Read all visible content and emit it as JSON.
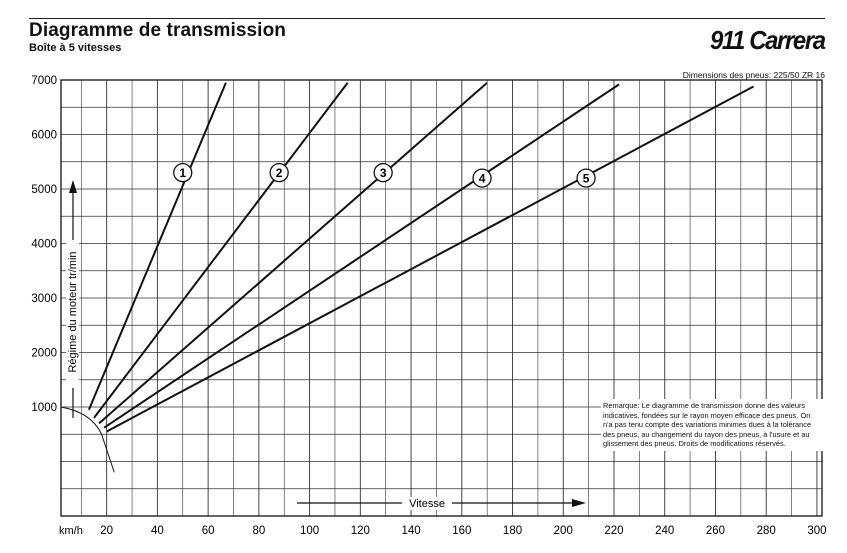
{
  "header": {
    "title": "Diagramme de transmission",
    "subtitle": "Boîte à 5 vitesses",
    "brand": "911 Carrera",
    "tire_spec": "Dimensions des pneus: 225/50 ZR 16"
  },
  "note": "Remarque: Le diagramme de transmission donne des valeurs indicatives, fondées sur le rayon moyen efficace des pneus. On n'a pas tenu compte des variations minimes dues à la tolérance des pneus, au changement du rayon des pneus, à l'usure et au glissement des pneus. Droits de modifications réservés.",
  "chart_data": {
    "type": "line",
    "title": "Diagramme de transmission",
    "xlabel": "Vitesse",
    "xunit": "km/h",
    "ylabel": "Régime du moteur tr/min",
    "xlim": [
      0,
      300
    ],
    "ylim": [
      0,
      7000
    ],
    "x_ticks": [
      20,
      40,
      60,
      80,
      100,
      120,
      140,
      160,
      180,
      200,
      220,
      240,
      260,
      280,
      300
    ],
    "y_ticks": [
      1000,
      2000,
      3000,
      4000,
      5000,
      6000,
      7000
    ],
    "grid": true,
    "series": [
      {
        "name": "1",
        "points": [
          [
            13,
            950
          ],
          [
            67,
            6950
          ]
        ]
      },
      {
        "name": "2",
        "points": [
          [
            15,
            800
          ],
          [
            115,
            6950
          ]
        ]
      },
      {
        "name": "3",
        "points": [
          [
            17,
            700
          ],
          [
            170,
            6950
          ]
        ]
      },
      {
        "name": "4",
        "points": [
          [
            19,
            620
          ],
          [
            222,
            6920
          ]
        ]
      },
      {
        "name": "5",
        "points": [
          [
            20,
            550
          ],
          [
            275,
            6880
          ]
        ]
      }
    ],
    "gear_labels": [
      {
        "text": "1",
        "x": 50,
        "y": 5300
      },
      {
        "text": "2",
        "x": 88,
        "y": 5300
      },
      {
        "text": "3",
        "x": 129,
        "y": 5300
      },
      {
        "text": "4",
        "x": 168,
        "y": 5200
      },
      {
        "text": "5",
        "x": 209,
        "y": 5200
      }
    ]
  }
}
